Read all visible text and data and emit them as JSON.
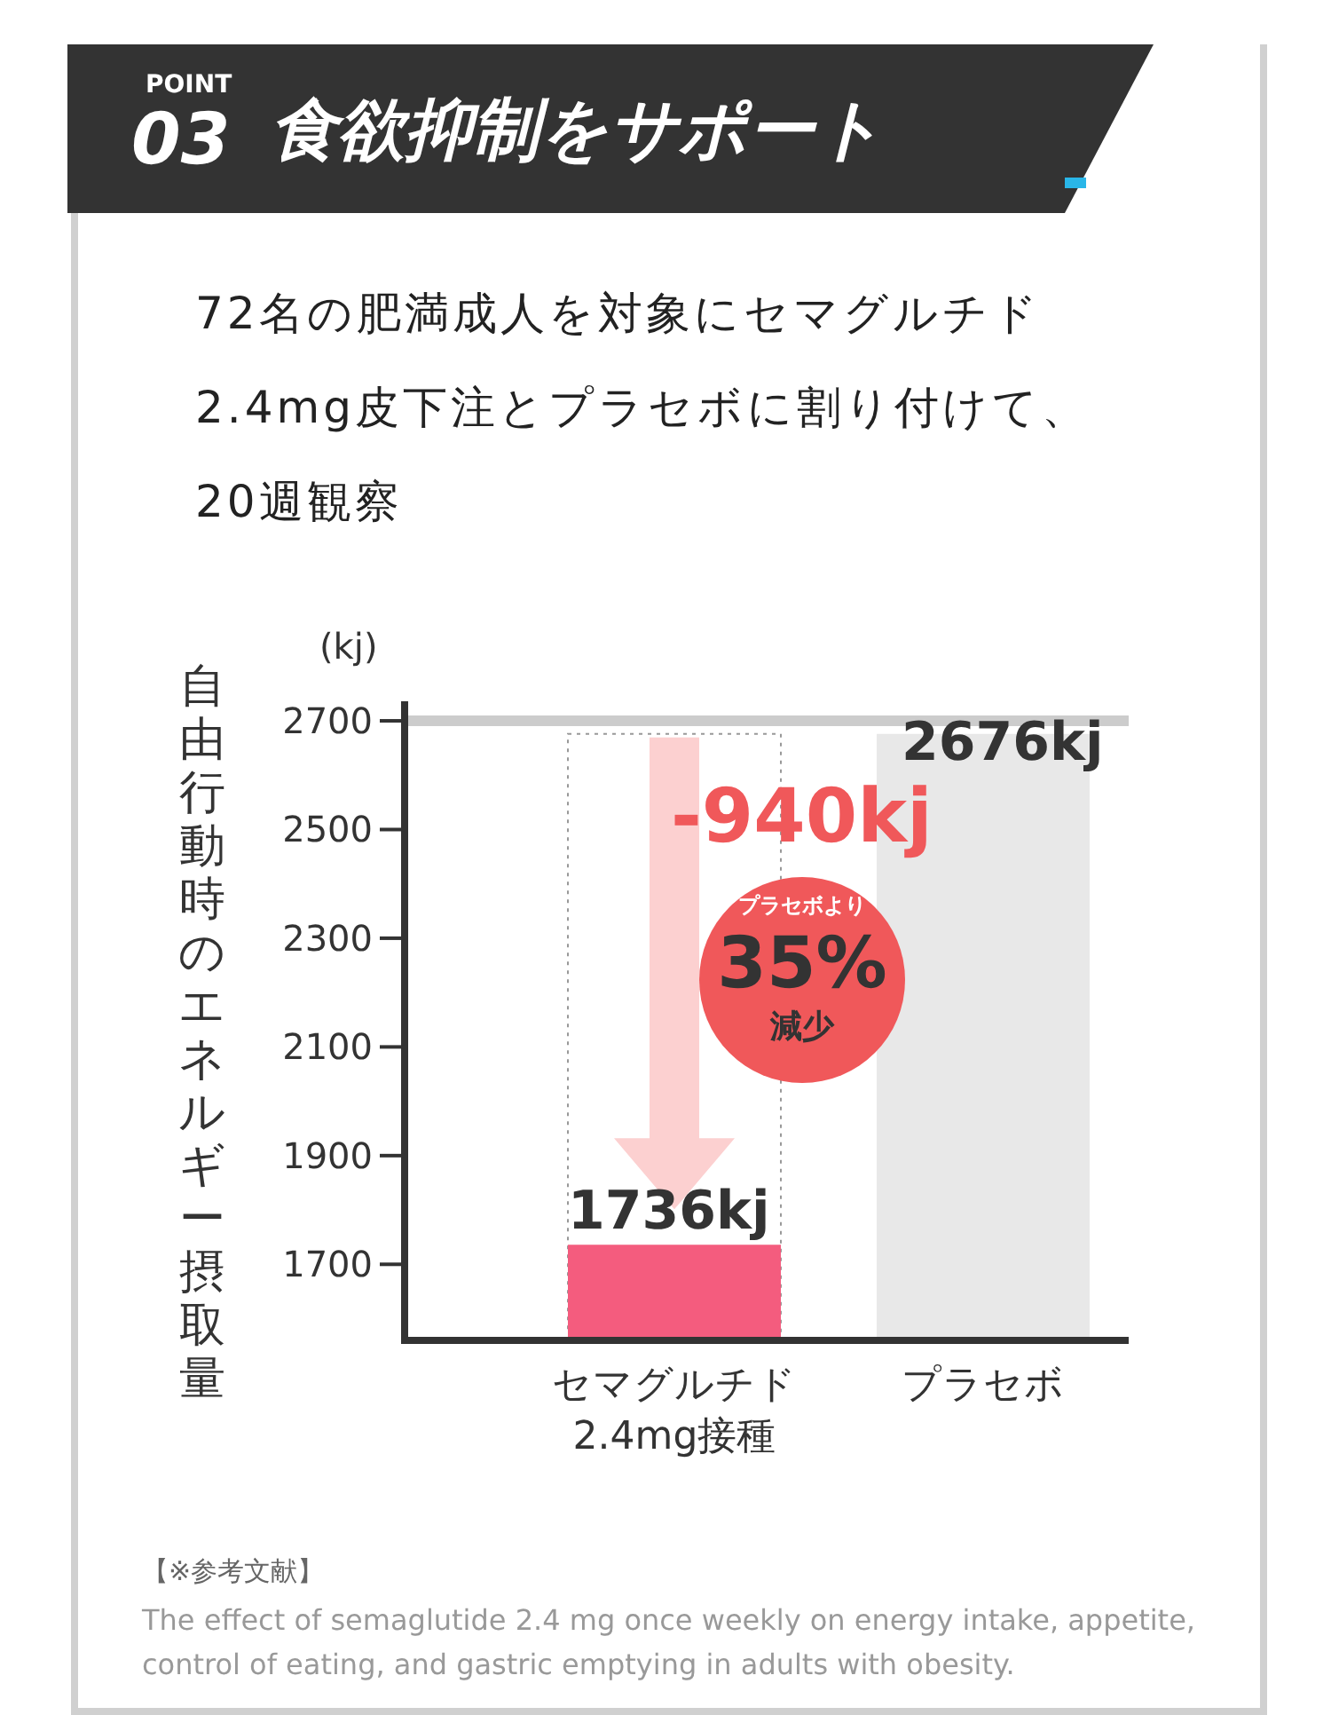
{
  "chart_data": {
    "type": "bar",
    "title": "食欲抑制をサポート",
    "subtitle": "72名の肥満成人を対象にセマグルチド\n2.4mg皮下注とプラセボに割り付けて、\n20週観察",
    "ylabel": "自由行動時のエネルギー摂取量",
    "categories": [
      "セマグルチド\n2.4mg接種",
      "プラセボ"
    ],
    "values": [
      1736,
      2676
    ],
    "colors": [
      "#f45c7e",
      "#e8e8e8"
    ],
    "value_labels": [
      "1736kj",
      "2676kj"
    ],
    "ylim": [
      1560,
      2736
    ],
    "yticks": [
      1700,
      1900,
      2100,
      2300,
      2500,
      2700
    ],
    "ref_lines": [
      {
        "axis": "y",
        "value": 2700,
        "color": "#cccccc"
      }
    ],
    "annotations": [
      "POINT",
      "03",
      "(kj)",
      "-940kj",
      "プラセボより",
      "35%",
      "減少",
      "【※参考文献】",
      "The effect of semaglutide 2.4 mg once weekly on energy intake, appetite, control of eating, and gastric emptying in adults with obesity."
    ]
  }
}
